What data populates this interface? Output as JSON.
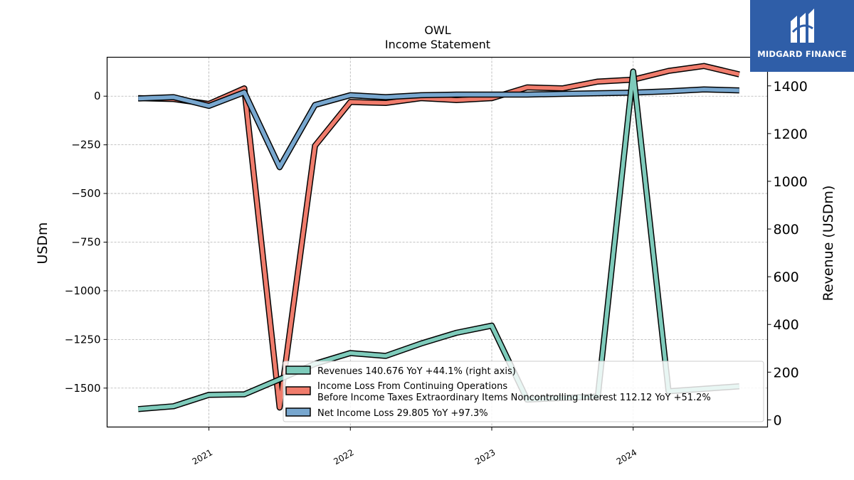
{
  "chart_data": {
    "type": "line",
    "title": "OWL",
    "subtitle": "Income Statement",
    "ylabel": "USDm",
    "ylabel_right": "Revenue (USDm)",
    "ylim": [
      -1700,
      200
    ],
    "ylim_right": [
      -30,
      1520
    ],
    "xlim": [
      2020.28,
      2021.0,
      2022.0,
      2023.0,
      2024.0,
      2024.95
    ],
    "yticks": [
      0,
      -250,
      -500,
      -750,
      -1000,
      -1250,
      -1500
    ],
    "ytick_labels": [
      "0",
      "−250",
      "−500",
      "−750",
      "−1000",
      "−1250",
      "−1500"
    ],
    "yticks_right": [
      0,
      200,
      400,
      600,
      800,
      1000,
      1200,
      1400
    ],
    "ytick_labels_right": [
      "0",
      "200",
      "400",
      "600",
      "800",
      "1000",
      "1200",
      "1400"
    ],
    "xticks": [
      2021,
      2022,
      2023,
      2024
    ],
    "xtick_labels": [
      "2021",
      "2022",
      "2023",
      "2024"
    ],
    "grid": true,
    "legend_position": "bottom-right",
    "series": [
      {
        "name": "Revenues  140.676 YoY +44.1% (right axis)",
        "axis": "right",
        "color": "#7ecbbb",
        "x": [
          2020.5,
          2020.75,
          2021.0,
          2021.25,
          2021.5,
          2021.75,
          2022.0,
          2022.25,
          2022.5,
          2022.75,
          2023.0,
          2023.25,
          2023.5,
          2023.75,
          2024.0,
          2024.25,
          2024.5,
          2024.75
        ],
        "y": [
          45,
          57,
          105,
          107,
          170,
          235,
          280,
          268,
          320,
          365,
          395,
          85,
          92,
          98,
          1460,
          120,
          130,
          140.676
        ]
      },
      {
        "name": "Income Loss From Continuing Operations\nBefore Income Taxes Extraordinary Items Noncontrolling Interest  112.12 YoY +51.2%",
        "axis": "left",
        "color": "#f07c6c",
        "x": [
          2020.5,
          2020.75,
          2021.0,
          2021.25,
          2021.5,
          2021.75,
          2022.0,
          2022.25,
          2022.5,
          2022.75,
          2023.0,
          2023.25,
          2023.5,
          2023.75,
          2024.0,
          2024.25,
          2024.5,
          2024.75
        ],
        "y": [
          -10,
          -15,
          -40,
          40,
          -1600,
          -255,
          -30,
          -35,
          -10,
          -20,
          -10,
          45,
          40,
          75,
          85,
          130,
          155,
          112.12
        ]
      },
      {
        "name": "Net Income Loss  29.805 YoY +97.3%",
        "axis": "left",
        "color": "#78a7cf",
        "x": [
          2020.5,
          2020.75,
          2021.0,
          2021.25,
          2021.5,
          2021.75,
          2022.0,
          2022.25,
          2022.5,
          2022.75,
          2023.0,
          2023.25,
          2023.5,
          2023.75,
          2024.0,
          2024.25,
          2024.5,
          2024.75
        ],
        "y": [
          -12,
          -5,
          -50,
          20,
          -365,
          -45,
          5,
          -5,
          5,
          8,
          8,
          8,
          12,
          15,
          18,
          25,
          35,
          29.805
        ]
      }
    ],
    "legend_entries": [
      "Revenues  140.676 YoY +44.1% (right axis)",
      "Income Loss From Continuing Operations",
      "Before Income Taxes Extraordinary Items Noncontrolling Interest  112.12 YoY +51.2%",
      "Net Income Loss  29.805 YoY +97.3%"
    ]
  },
  "logo": {
    "text": "MIDGARD FINANCE",
    "color": "#2f5ea8"
  }
}
